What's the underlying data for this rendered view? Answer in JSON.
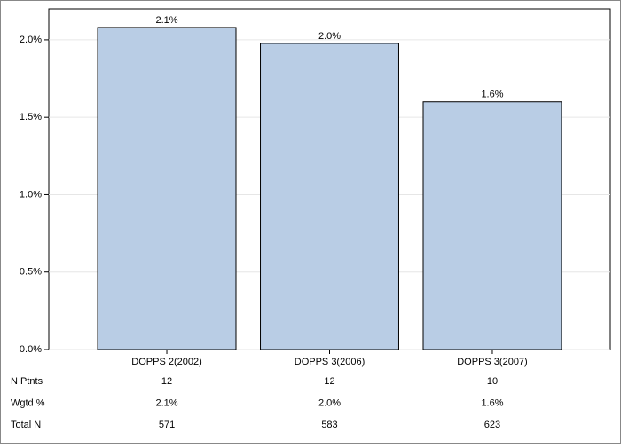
{
  "chart_data": {
    "type": "bar",
    "categories": [
      "DOPPS 2(2002)",
      "DOPPS 3(2006)",
      "DOPPS 3(2007)"
    ],
    "values": [
      2.08,
      1.977,
      1.6
    ],
    "value_labels": [
      "2.1%",
      "2.0%",
      "1.6%"
    ],
    "color": "#b9cde5",
    "ylim": [
      0,
      2.2
    ],
    "yticks": [
      {
        "value": 0,
        "label": "0.0%"
      },
      {
        "value": 0.5,
        "label": "0.5%"
      },
      {
        "value": 1,
        "label": "1.0%"
      },
      {
        "value": 1.5,
        "label": "1.5%"
      },
      {
        "value": 2,
        "label": "2.0%"
      }
    ],
    "grid": true,
    "table": {
      "rows": [
        {
          "label": "N Ptnts",
          "values": [
            12,
            12,
            10
          ]
        },
        {
          "label": "Wgtd %",
          "values": [
            "2.1%",
            "2.0%",
            "1.6%"
          ]
        },
        {
          "label": "Total N",
          "values": [
            571,
            583,
            623
          ]
        }
      ]
    }
  }
}
